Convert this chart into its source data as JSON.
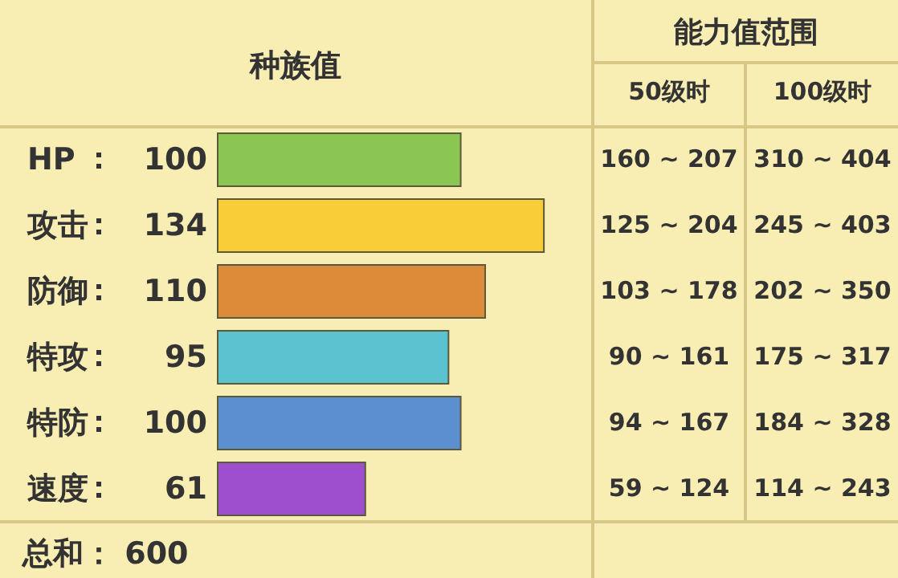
{
  "chart_data": {
    "type": "bar",
    "orientation": "horizontal",
    "title": "种族值",
    "categories": [
      "HP",
      "攻击",
      "防御",
      "特攻",
      "特防",
      "速度"
    ],
    "values": [
      100,
      134,
      110,
      95,
      100,
      61
    ],
    "colors": [
      "#8bc653",
      "#f8cd38",
      "#dc8c38",
      "#5bc2cf",
      "#5b8fd0",
      "#9e4fcd"
    ],
    "xlim": [
      0,
      153
    ],
    "data_labels": true,
    "annotations": [
      "能力值范围",
      "50级时",
      "100级时",
      "160 ~ 207",
      "310 ~ 404",
      "125 ~ 204",
      "245 ~ 403",
      "103 ~ 178",
      "202 ~ 350",
      "90 ~ 161",
      "175 ~ 317",
      "94 ~ 167",
      "184 ~ 328",
      "59 ~ 124",
      "114 ~ 243",
      "总和：  600"
    ]
  }
}
